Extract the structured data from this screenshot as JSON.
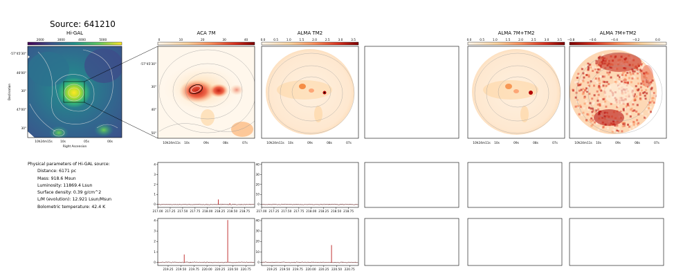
{
  "title": "Source: 641210",
  "panels": {
    "higal": {
      "title": "Hi-GAL",
      "xlabel": "Right Ascension",
      "ylabel": "Declination",
      "ra_ticks": [
        "10h24m15s",
        "10s",
        "05s",
        "00s"
      ],
      "dec_ticks": [
        "-57°45'30\"",
        "46'00\"",
        "30\"",
        "47'00\"",
        "30\""
      ],
      "colorbar_ticks": [
        "2000",
        "3000",
        "4000",
        "5000"
      ]
    },
    "aca": {
      "title": "ACA 7M",
      "ra_ticks": [
        "10h24m11s",
        "10s",
        "09s",
        "08s",
        "07s"
      ],
      "dec_ticks": [
        "-57°45'30\"",
        "30\"",
        "40\"",
        "50\""
      ],
      "colorbar_ticks": [
        "0",
        "10",
        "20",
        "30",
        "40"
      ]
    },
    "tm2": {
      "title": "ALMA TM2",
      "ra_ticks": [
        "10h24m11s",
        "10s",
        "09s",
        "08s",
        "07s"
      ],
      "colorbar_ticks": [
        "0.0",
        "0.5",
        "1.0",
        "1.5",
        "2.0",
        "2.5",
        "3.0",
        "3.5"
      ]
    },
    "combo": {
      "title": "ALMA 7M+TM2",
      "ra_ticks": [
        "10h24m11s",
        "10s",
        "09s",
        "08s",
        "07s"
      ],
      "colorbar_ticks": [
        "0.0",
        "0.5",
        "1.0",
        "1.5",
        "2.0",
        "2.5",
        "3.0",
        "3.5"
      ]
    },
    "combo2": {
      "title": "ALMA 7M+TM2",
      "ra_ticks": [
        "10h24m11s",
        "10s",
        "09s",
        "08s",
        "07s"
      ],
      "colorbar_ticks": [
        "−0.8",
        "−0.6",
        "−0.4",
        "−0.2",
        "0.0"
      ]
    }
  },
  "parameters": {
    "heading": "Physical parameters of Hi-GAL source:",
    "distance": "Distance: 6171 pc",
    "mass": "Mass: 918.6 Msun",
    "luminosity": "Luminosity: 11869.4 Lsun",
    "surface_density": "Surface density: 0.39 g/cm^2",
    "lm": "L/M (evolution): 12.921 Lsun/Msun",
    "tbol": "Bolometric temperature: 42.4 K"
  },
  "chart_data": [
    {
      "type": "line",
      "panel": "spectrum-aca-top",
      "xlim": [
        217.0,
        218.95
      ],
      "ylim": [
        -0.3,
        4.2
      ],
      "x_ticks": [
        217.0,
        217.25,
        217.5,
        217.75,
        218.0,
        218.25,
        218.5,
        218.75
      ],
      "x_tick_labels": [
        "217.00",
        "217.25",
        "217.50",
        "217.75",
        "218.00",
        "218.25",
        "218.50",
        "218.75"
      ],
      "y_ticks": [
        0,
        1,
        2,
        3,
        4
      ],
      "y_tick_labels": [
        "0",
        "1",
        "2",
        "3",
        "4"
      ],
      "baseline": 0,
      "lines": [
        {
          "x": 218.22,
          "y": 0.5
        },
        {
          "x": 218.45,
          "y": 0.12
        }
      ]
    },
    {
      "type": "line",
      "panel": "spectrum-tm2-top",
      "xlim": [
        217.0,
        218.95
      ],
      "ylim": [
        -3,
        42
      ],
      "x_ticks": [
        217.0,
        217.25,
        217.5,
        217.75,
        218.0,
        218.25,
        218.5,
        218.75
      ],
      "x_tick_labels": [
        "217.00",
        "217.25",
        "217.50",
        "217.75",
        "218.00",
        "218.25",
        "218.50",
        "218.75"
      ],
      "y_ticks": [
        0,
        10,
        20,
        30,
        40
      ],
      "y_tick_labels": [
        "0",
        "10",
        "20",
        "30",
        "40"
      ],
      "baseline": 0,
      "lines": []
    },
    {
      "type": "line",
      "panel": "spectrum-aca-bottom",
      "xlim": [
        219.05,
        220.92
      ],
      "ylim": [
        -0.3,
        4.2
      ],
      "x_ticks": [
        219.25,
        219.5,
        219.75,
        220.0,
        220.25,
        220.5,
        220.75
      ],
      "x_tick_labels": [
        "219.25",
        "219.50",
        "219.75",
        "220.00",
        "220.25",
        "220.50",
        "220.75"
      ],
      "y_ticks": [
        0,
        1,
        2,
        3,
        4
      ],
      "y_tick_labels": [
        "0",
        "1",
        "2",
        "3",
        "4"
      ],
      "baseline": 0,
      "lines": [
        {
          "x": 219.56,
          "y": 0.75
        },
        {
          "x": 220.4,
          "y": 4.05
        }
      ]
    },
    {
      "type": "line",
      "panel": "spectrum-tm2-bottom",
      "xlim": [
        219.05,
        220.92
      ],
      "ylim": [
        -3,
        42
      ],
      "x_ticks": [
        219.25,
        219.5,
        219.75,
        220.0,
        220.25,
        220.5,
        220.75
      ],
      "x_tick_labels": [
        "219.25",
        "219.50",
        "219.75",
        "220.00",
        "220.25",
        "220.50",
        "220.75"
      ],
      "y_ticks": [
        0,
        10,
        20,
        30,
        40
      ],
      "y_tick_labels": [
        "0",
        "10",
        "20",
        "30",
        "40"
      ],
      "baseline": 0,
      "lines": [
        {
          "x": 220.4,
          "y": 16.5
        }
      ]
    }
  ]
}
